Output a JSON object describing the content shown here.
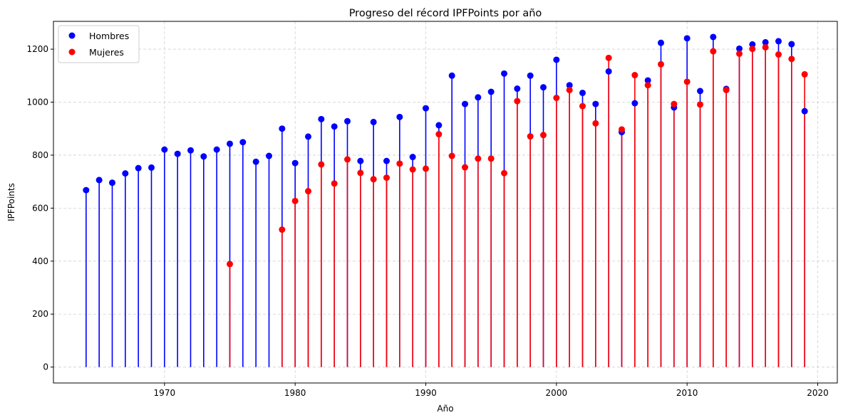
{
  "chart_data": {
    "type": "scatter",
    "subtype": "stem",
    "title": "Progreso del récord IPFPoints por año",
    "xlabel": "Año",
    "ylabel": "IPFPoints",
    "xlim": [
      1961.5,
      2021.5
    ],
    "ylim": [
      -60,
      1305
    ],
    "xticks": [
      1970,
      1980,
      1990,
      2000,
      2010,
      2020
    ],
    "yticks": [
      0,
      200,
      400,
      600,
      800,
      1000,
      1200
    ],
    "grid": true,
    "legend_position": "top-left",
    "series": [
      {
        "name": "Hombres",
        "color": "#0000ff",
        "x": [
          1964,
          1965,
          1966,
          1967,
          1968,
          1969,
          1970,
          1971,
          1972,
          1973,
          1974,
          1975,
          1976,
          1977,
          1978,
          1979,
          1980,
          1981,
          1982,
          1983,
          1984,
          1985,
          1986,
          1987,
          1988,
          1989,
          1990,
          1991,
          1992,
          1993,
          1994,
          1995,
          1996,
          1997,
          1998,
          1999,
          2000,
          2001,
          2002,
          2003,
          2004,
          2005,
          2006,
          2007,
          2008,
          2009,
          2010,
          2011,
          2012,
          2013,
          2014,
          2015,
          2016,
          2017,
          2018,
          2019
        ],
        "values": [
          668,
          706,
          696,
          731,
          751,
          753,
          821,
          805,
          818,
          795,
          821,
          843,
          849,
          775,
          797,
          900,
          770,
          870,
          936,
          908,
          928,
          778,
          925,
          778,
          944,
          793,
          977,
          913,
          1100,
          993,
          1018,
          1039,
          1108,
          1051,
          1100,
          1056,
          1160,
          1064,
          1035,
          993,
          1116,
          887,
          996,
          1082,
          1224,
          980,
          1241,
          1042,
          1246,
          1050,
          1202,
          1218,
          1226,
          1230,
          1219,
          966
        ]
      },
      {
        "name": "Mujeres",
        "color": "#ff0000",
        "x": [
          1975,
          1979,
          1980,
          1981,
          1982,
          1983,
          1984,
          1985,
          1986,
          1987,
          1988,
          1989,
          1990,
          1991,
          1992,
          1993,
          1994,
          1995,
          1996,
          1997,
          1998,
          1999,
          2000,
          2001,
          2002,
          2003,
          2004,
          2005,
          2006,
          2007,
          2008,
          2009,
          2010,
          2011,
          2012,
          2013,
          2014,
          2015,
          2016,
          2017,
          2018,
          2019
        ],
        "values": [
          389,
          519,
          627,
          664,
          765,
          693,
          784,
          733,
          709,
          715,
          768,
          746,
          749,
          879,
          797,
          754,
          787,
          787,
          732,
          1004,
          871,
          876,
          1016,
          1046,
          985,
          920,
          1167,
          897,
          1102,
          1064,
          1143,
          993,
          1077,
          991,
          1192,
          1046,
          1183,
          1201,
          1207,
          1180,
          1163,
          1105
        ]
      }
    ]
  }
}
